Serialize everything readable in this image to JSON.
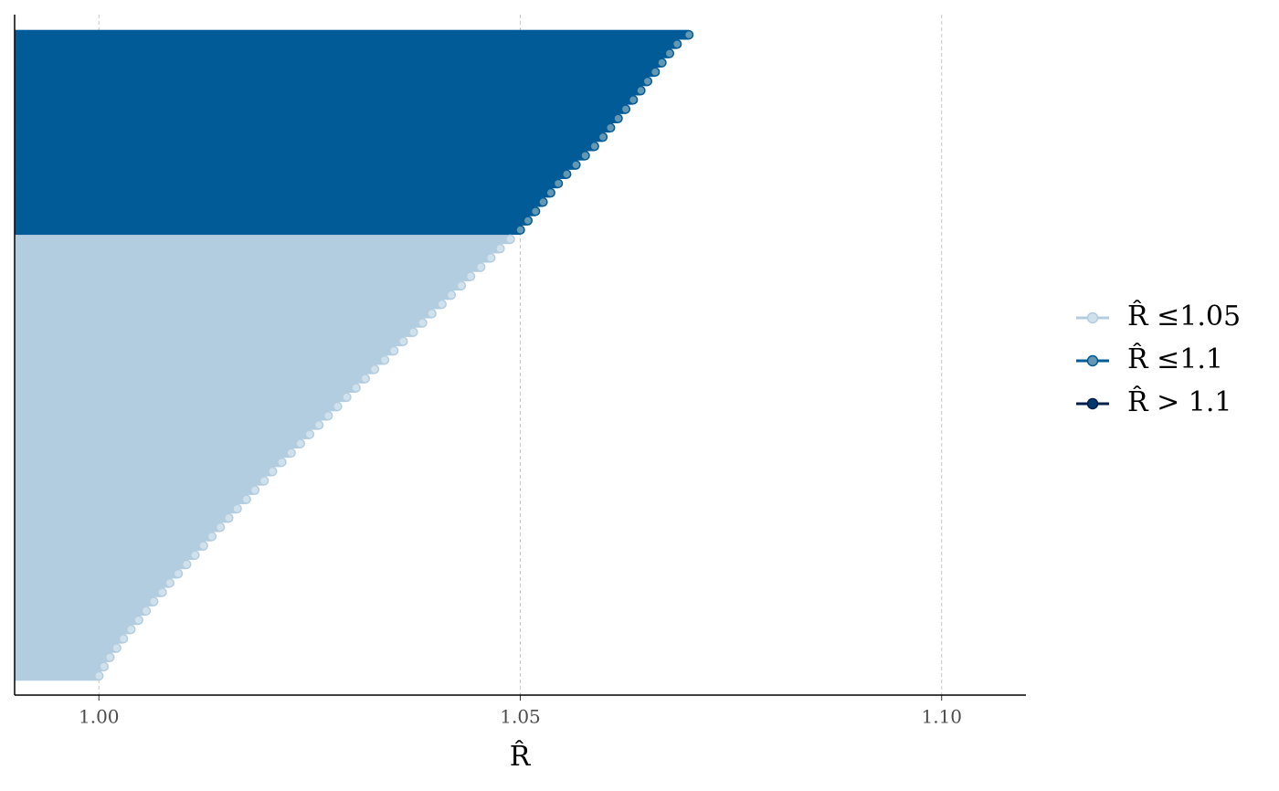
{
  "chart_data": {
    "type": "rhat",
    "xlabel": "R̂",
    "xlim": [
      0.99,
      1.11
    ],
    "xticks": [
      {
        "value": 1.0,
        "label": "1.00"
      },
      {
        "value": 1.05,
        "label": "1.05"
      },
      {
        "value": 1.1,
        "label": "1.10"
      }
    ],
    "grid": true,
    "legend": "right",
    "series": [
      {
        "name": "R̂ ≤1.05",
        "color": "#b3cde0",
        "point_fill": "#d1e1ec",
        "values": [
          1.0,
          1.0006,
          1.0013,
          1.0021,
          1.0029,
          1.0038,
          1.0047,
          1.0056,
          1.0065,
          1.0075,
          1.0084,
          1.0094,
          1.0104,
          1.0114,
          1.0124,
          1.0134,
          1.0144,
          1.0154,
          1.0164,
          1.0175,
          1.0185,
          1.0196,
          1.0206,
          1.0217,
          1.0228,
          1.0239,
          1.025,
          1.0261,
          1.0272,
          1.0283,
          1.0294,
          1.0305,
          1.0316,
          1.0327,
          1.0339,
          1.035,
          1.0361,
          1.0373,
          1.0384,
          1.0395,
          1.0407,
          1.0418,
          1.043,
          1.0441,
          1.0453,
          1.0465,
          1.0476,
          1.0488
        ]
      },
      {
        "name": "R̂ ≤1.1",
        "color": "#005b96",
        "point_fill": "#6497b1",
        "values": [
          1.05,
          1.0509,
          1.0518,
          1.0527,
          1.0536,
          1.0545,
          1.0555,
          1.0566,
          1.0577,
          1.0588,
          1.0598,
          1.0607,
          1.0616,
          1.0625,
          1.0634,
          1.0643,
          1.0651,
          1.066,
          1.0668,
          1.0677,
          1.0686,
          1.07
        ]
      },
      {
        "name": "R̂ > 1.1",
        "color": "#011f4b",
        "point_fill": "#03396c",
        "values": []
      }
    ]
  }
}
